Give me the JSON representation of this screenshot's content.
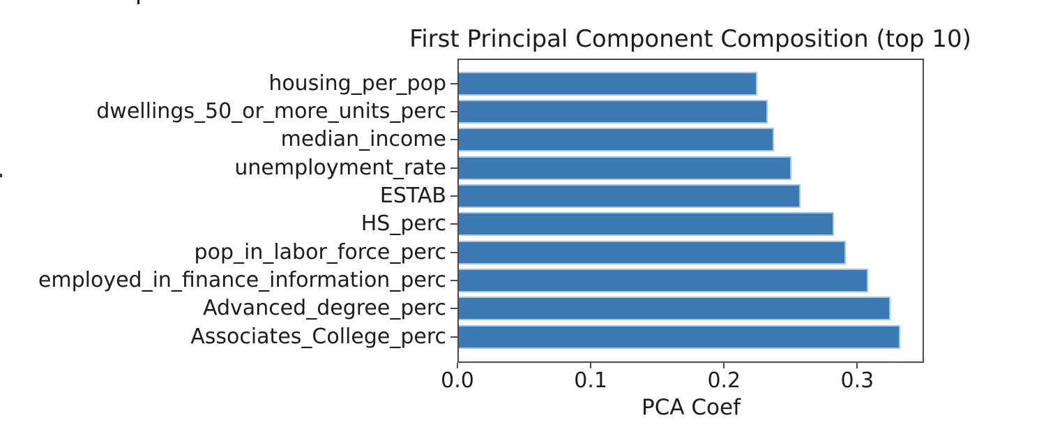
{
  "chart_data": {
    "type": "bar",
    "orientation": "horizontal",
    "title": "First Principal Component Composition (top 10)",
    "xlabel": "PCA Coef",
    "ylabel": "",
    "categories": [
      "housing_per_pop",
      "dwellings_50_or_more_units_perc",
      "median_income",
      "unemployment_rate",
      "ESTAB",
      "HS_perc",
      "pop_in_labor_force_perc",
      "employed_in_finance_information_perc",
      "Advanced_degree_perc",
      "Associates_College_perc"
    ],
    "values": [
      0.225,
      0.233,
      0.238,
      0.251,
      0.258,
      0.283,
      0.292,
      0.309,
      0.326,
      0.333
    ],
    "xlim": [
      0.0,
      0.35
    ],
    "xticks": [
      0.0,
      0.1,
      0.2,
      0.3
    ],
    "xtick_labels": [
      "0.0",
      "0.1",
      "0.2",
      "0.3"
    ],
    "grid": false,
    "legend": false,
    "colors": {
      "bar_fill": "#3c79b3",
      "bar_edge": "#a7c6e1",
      "spine": "#4a4a4a",
      "text": "#1c1c1c",
      "background": "#ffffff"
    }
  }
}
